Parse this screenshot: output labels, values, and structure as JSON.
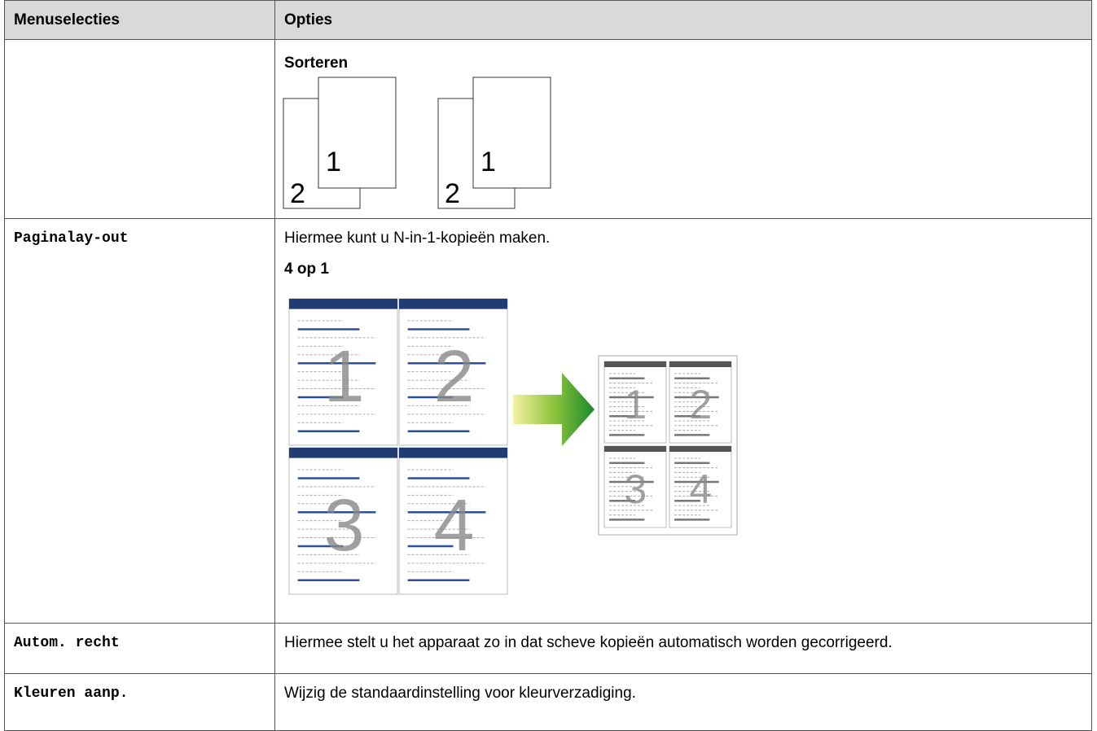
{
  "table": {
    "header": [
      "Menuselecties",
      "Opties"
    ],
    "rows": [
      {
        "option_heading": "Sorteren",
        "page_numbers": [
          "2",
          "1",
          "2",
          "1"
        ]
      },
      {
        "menu": "Paginalay-out",
        "description": "Hiermee kunt u N-in-1-kopieën maken.",
        "option_heading": "4 op 1",
        "page_numbers": [
          "1",
          "2",
          "3",
          "4"
        ]
      },
      {
        "menu": "Autom. recht",
        "description": "Hiermee stelt u het apparaat zo in dat scheve kopieën automatisch worden gecorrigeerd."
      },
      {
        "menu": "Kleuren aanp.",
        "description": "Wijzig de standaardinstelling voor kleurverzadiging."
      }
    ]
  }
}
